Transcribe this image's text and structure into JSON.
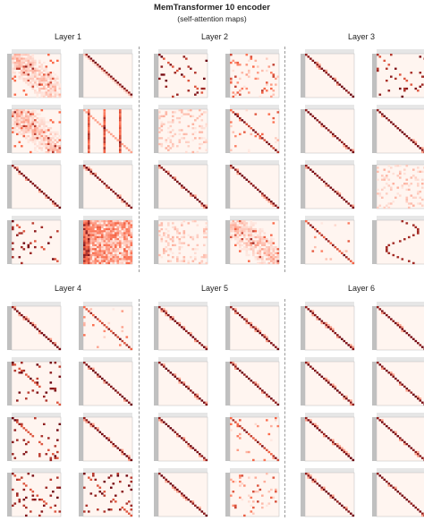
{
  "figure": {
    "title": "MemTransformer 10 encoder",
    "subtitle": "(self-attention maps)"
  },
  "colors": {
    "low": "#fff5f0",
    "mid": "#fb6a4a",
    "high": "#67000d",
    "token_bar": "#c0c0c0"
  },
  "chart_data": {
    "type": "heatmap",
    "title": "MemTransformer 10 encoder",
    "subtitle": "(self-attention maps)",
    "colormap": "Reds",
    "value_range": [
      0,
      1
    ],
    "grid_per_layer": {
      "rows": 4,
      "cols": 2
    },
    "layers": [
      {
        "label": "Layer 1",
        "maps": [
          {
            "head": 1,
            "pattern": "diffuse"
          },
          {
            "head": 2,
            "pattern": "shifted-diagonal"
          },
          {
            "head": 3,
            "pattern": "diffuse"
          },
          {
            "head": 4,
            "pattern": "columns"
          },
          {
            "head": 5,
            "pattern": "diagonal"
          },
          {
            "head": 6,
            "pattern": "diagonal"
          },
          {
            "head": 7,
            "pattern": "sparse"
          },
          {
            "head": 8,
            "pattern": "dense"
          }
        ]
      },
      {
        "label": "Layer 2",
        "maps": [
          {
            "head": 1,
            "pattern": "sparse"
          },
          {
            "head": 2,
            "pattern": "scattered"
          },
          {
            "head": 3,
            "pattern": "faint"
          },
          {
            "head": 4,
            "pattern": "scattered-diagonal"
          },
          {
            "head": 5,
            "pattern": "diagonal"
          },
          {
            "head": 6,
            "pattern": "diagonal"
          },
          {
            "head": 7,
            "pattern": "faint"
          },
          {
            "head": 8,
            "pattern": "diffuse"
          }
        ]
      },
      {
        "label": "Layer 3",
        "maps": [
          {
            "head": 1,
            "pattern": "diagonal"
          },
          {
            "head": 2,
            "pattern": "sparse"
          },
          {
            "head": 3,
            "pattern": "diagonal"
          },
          {
            "head": 4,
            "pattern": "diagonal"
          },
          {
            "head": 5,
            "pattern": "diagonal"
          },
          {
            "head": 6,
            "pattern": "faint"
          },
          {
            "head": 7,
            "pattern": "scattered-diagonal"
          },
          {
            "head": 8,
            "pattern": "loop"
          }
        ]
      },
      {
        "label": "Layer 4",
        "maps": [
          {
            "head": 1,
            "pattern": "diagonal"
          },
          {
            "head": 2,
            "pattern": "scattered-diagonal"
          },
          {
            "head": 3,
            "pattern": "sparse"
          },
          {
            "head": 4,
            "pattern": "diagonal"
          },
          {
            "head": 5,
            "pattern": "sparse"
          },
          {
            "head": 6,
            "pattern": "diagonal"
          },
          {
            "head": 7,
            "pattern": "sparse"
          },
          {
            "head": 8,
            "pattern": "sparse"
          }
        ]
      },
      {
        "label": "Layer 5",
        "maps": [
          {
            "head": 1,
            "pattern": "diagonal"
          },
          {
            "head": 2,
            "pattern": "diagonal"
          },
          {
            "head": 3,
            "pattern": "diagonal"
          },
          {
            "head": 4,
            "pattern": "diagonal"
          },
          {
            "head": 5,
            "pattern": "diagonal"
          },
          {
            "head": 6,
            "pattern": "scattered-diagonal"
          },
          {
            "head": 7,
            "pattern": "diagonal"
          },
          {
            "head": 8,
            "pattern": "scattered"
          }
        ]
      },
      {
        "label": "Layer 6",
        "maps": [
          {
            "head": 1,
            "pattern": "diagonal"
          },
          {
            "head": 2,
            "pattern": "diagonal"
          },
          {
            "head": 3,
            "pattern": "diagonal"
          },
          {
            "head": 4,
            "pattern": "diagonal"
          },
          {
            "head": 5,
            "pattern": "diagonal"
          },
          {
            "head": 6,
            "pattern": "diagonal"
          },
          {
            "head": 7,
            "pattern": "diagonal"
          },
          {
            "head": 8,
            "pattern": "diagonal"
          }
        ]
      }
    ]
  }
}
